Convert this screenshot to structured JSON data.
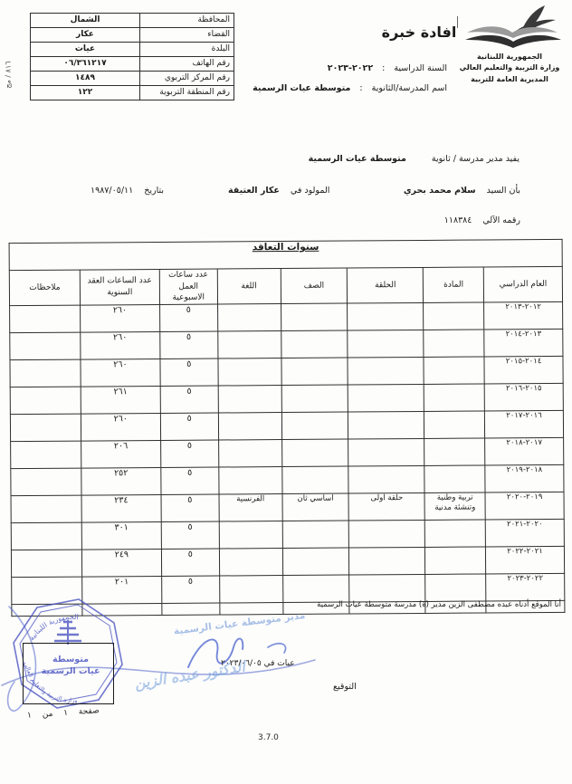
{
  "ui": {
    "colon": ":"
  },
  "meta": {
    "version": "3.7.0",
    "page_note": "صفحة ١ من ١",
    "margin_note": "٨١٦ / مج"
  },
  "header": {
    "ministry": [
      "الجمهورية اللبنانية",
      "وزارة التربية والتعليم العالي",
      "المديرية العامة للتربية"
    ],
    "title": "افادة خبرة",
    "info_table": [
      {
        "label": "المحافظة",
        "value": "الشمال"
      },
      {
        "label": "القضاء",
        "value": "عكار"
      },
      {
        "label": "البلدة",
        "value": "عيات"
      },
      {
        "label": "رقم الهاتف",
        "value": "٠٦/٣٦١٢١٧"
      },
      {
        "label": "رقم المركز التربوي",
        "value": "١٤٨٩"
      },
      {
        "label": "رقم المنطقة التربوية",
        "value": "١٢٢"
      }
    ],
    "year_label": "السنة الدراسية",
    "year_value": "٢٠٢٢-٢٠٢٣",
    "school_label": "اسم المدرسة/الثانوية",
    "school_value": "متوسطة عيات الرسمية"
  },
  "statement": {
    "certifies_label": "يفيد مدير مدرسة / ثانوية",
    "school_name": "متوسطة عيات الرسمية",
    "mr_label": "بأن السيد",
    "person_name": "سلام محمد بحري",
    "born_in_label": "المولود في",
    "birthplace": "عكار العتيقة",
    "date_label": "بتاريخ",
    "birth_date": "١٩٨٧/٠٥/١١",
    "id_label": "رقمه الآلي",
    "id_number": "١١٨٣٨٤"
  },
  "contract_table": {
    "title": "سنوات التعاقد",
    "columns": [
      "العام الدراسي",
      "المادة",
      "الحلقة",
      "الصف",
      "اللغة",
      "عدد ساعات العمل الاسبوعية",
      "عدد الساعات العقد السنوية",
      "ملاحظات"
    ],
    "rows": [
      {
        "year": "٢٠١٢-٢٠١٣",
        "subject": "",
        "cycle": "",
        "class": "",
        "language": "",
        "weekly_hours": "٥",
        "annual_hours": "٢٦٠",
        "notes": ""
      },
      {
        "year": "٢٠١٣-٢٠١٤",
        "subject": "",
        "cycle": "",
        "class": "",
        "language": "",
        "weekly_hours": "٥",
        "annual_hours": "٢٦٠",
        "notes": ""
      },
      {
        "year": "٢٠١٤-٢٠١٥",
        "subject": "",
        "cycle": "",
        "class": "",
        "language": "",
        "weekly_hours": "٥",
        "annual_hours": "٢٦٠",
        "notes": ""
      },
      {
        "year": "٢٠١٥-٢٠١٦",
        "subject": "",
        "cycle": "",
        "class": "",
        "language": "",
        "weekly_hours": "٥",
        "annual_hours": "٢٦١",
        "notes": ""
      },
      {
        "year": "٢٠١٦-٢٠١٧",
        "subject": "",
        "cycle": "",
        "class": "",
        "language": "",
        "weekly_hours": "٥",
        "annual_hours": "٢٦٠",
        "notes": ""
      },
      {
        "year": "٢٠١٧-٢٠١٨",
        "subject": "",
        "cycle": "",
        "class": "",
        "language": "",
        "weekly_hours": "٥",
        "annual_hours": "٢٠٦",
        "notes": ""
      },
      {
        "year": "٢٠١٨-٢٠١٩",
        "subject": "",
        "cycle": "",
        "class": "",
        "language": "",
        "weekly_hours": "٥",
        "annual_hours": "٢٥٢",
        "notes": ""
      },
      {
        "year": "٢٠١٩-٢٠٢٠",
        "subject": "تربية وطنية وتنشئة مدنية",
        "cycle": "حلقة اولى",
        "class": "اساسي ثان",
        "language": "الفرنسية",
        "weekly_hours": "٥",
        "annual_hours": "٢٣٤",
        "notes": ""
      },
      {
        "year": "٢٠٢٠-٢٠٢١",
        "subject": "",
        "cycle": "",
        "class": "",
        "language": "",
        "weekly_hours": "٥",
        "annual_hours": "٣٠١",
        "notes": ""
      },
      {
        "year": "٢٠٢١-٢٠٢٢",
        "subject": "",
        "cycle": "",
        "class": "",
        "language": "",
        "weekly_hours": "٥",
        "annual_hours": "٢٤٩",
        "notes": ""
      },
      {
        "year": "٢٠٢٢-٢٠٢٣",
        "subject": "",
        "cycle": "",
        "class": "",
        "language": "",
        "weekly_hours": "٥",
        "annual_hours": "٢٠١",
        "notes": ""
      }
    ]
  },
  "footer": {
    "declaration": "أنا الموقع أدناه عبده مصطفى الزين مدير (ة) مدرسة متوسطة عيات الرسمية",
    "place_date": "عيات في ٢٠٢٣/٠٦/٠٥",
    "signature_label": "التوقيع",
    "stamp": {
      "around_top": "الجمهورية اللبنانية",
      "around_bottom": "وزارة التربية والتعليم العالي",
      "center_line1": "متوسطة",
      "center_line2": "عيات الرسمية"
    },
    "handwriting": {
      "title": "مدير متوسطة عيات الرسمية",
      "name": "الدكتور عبده الزين"
    }
  }
}
